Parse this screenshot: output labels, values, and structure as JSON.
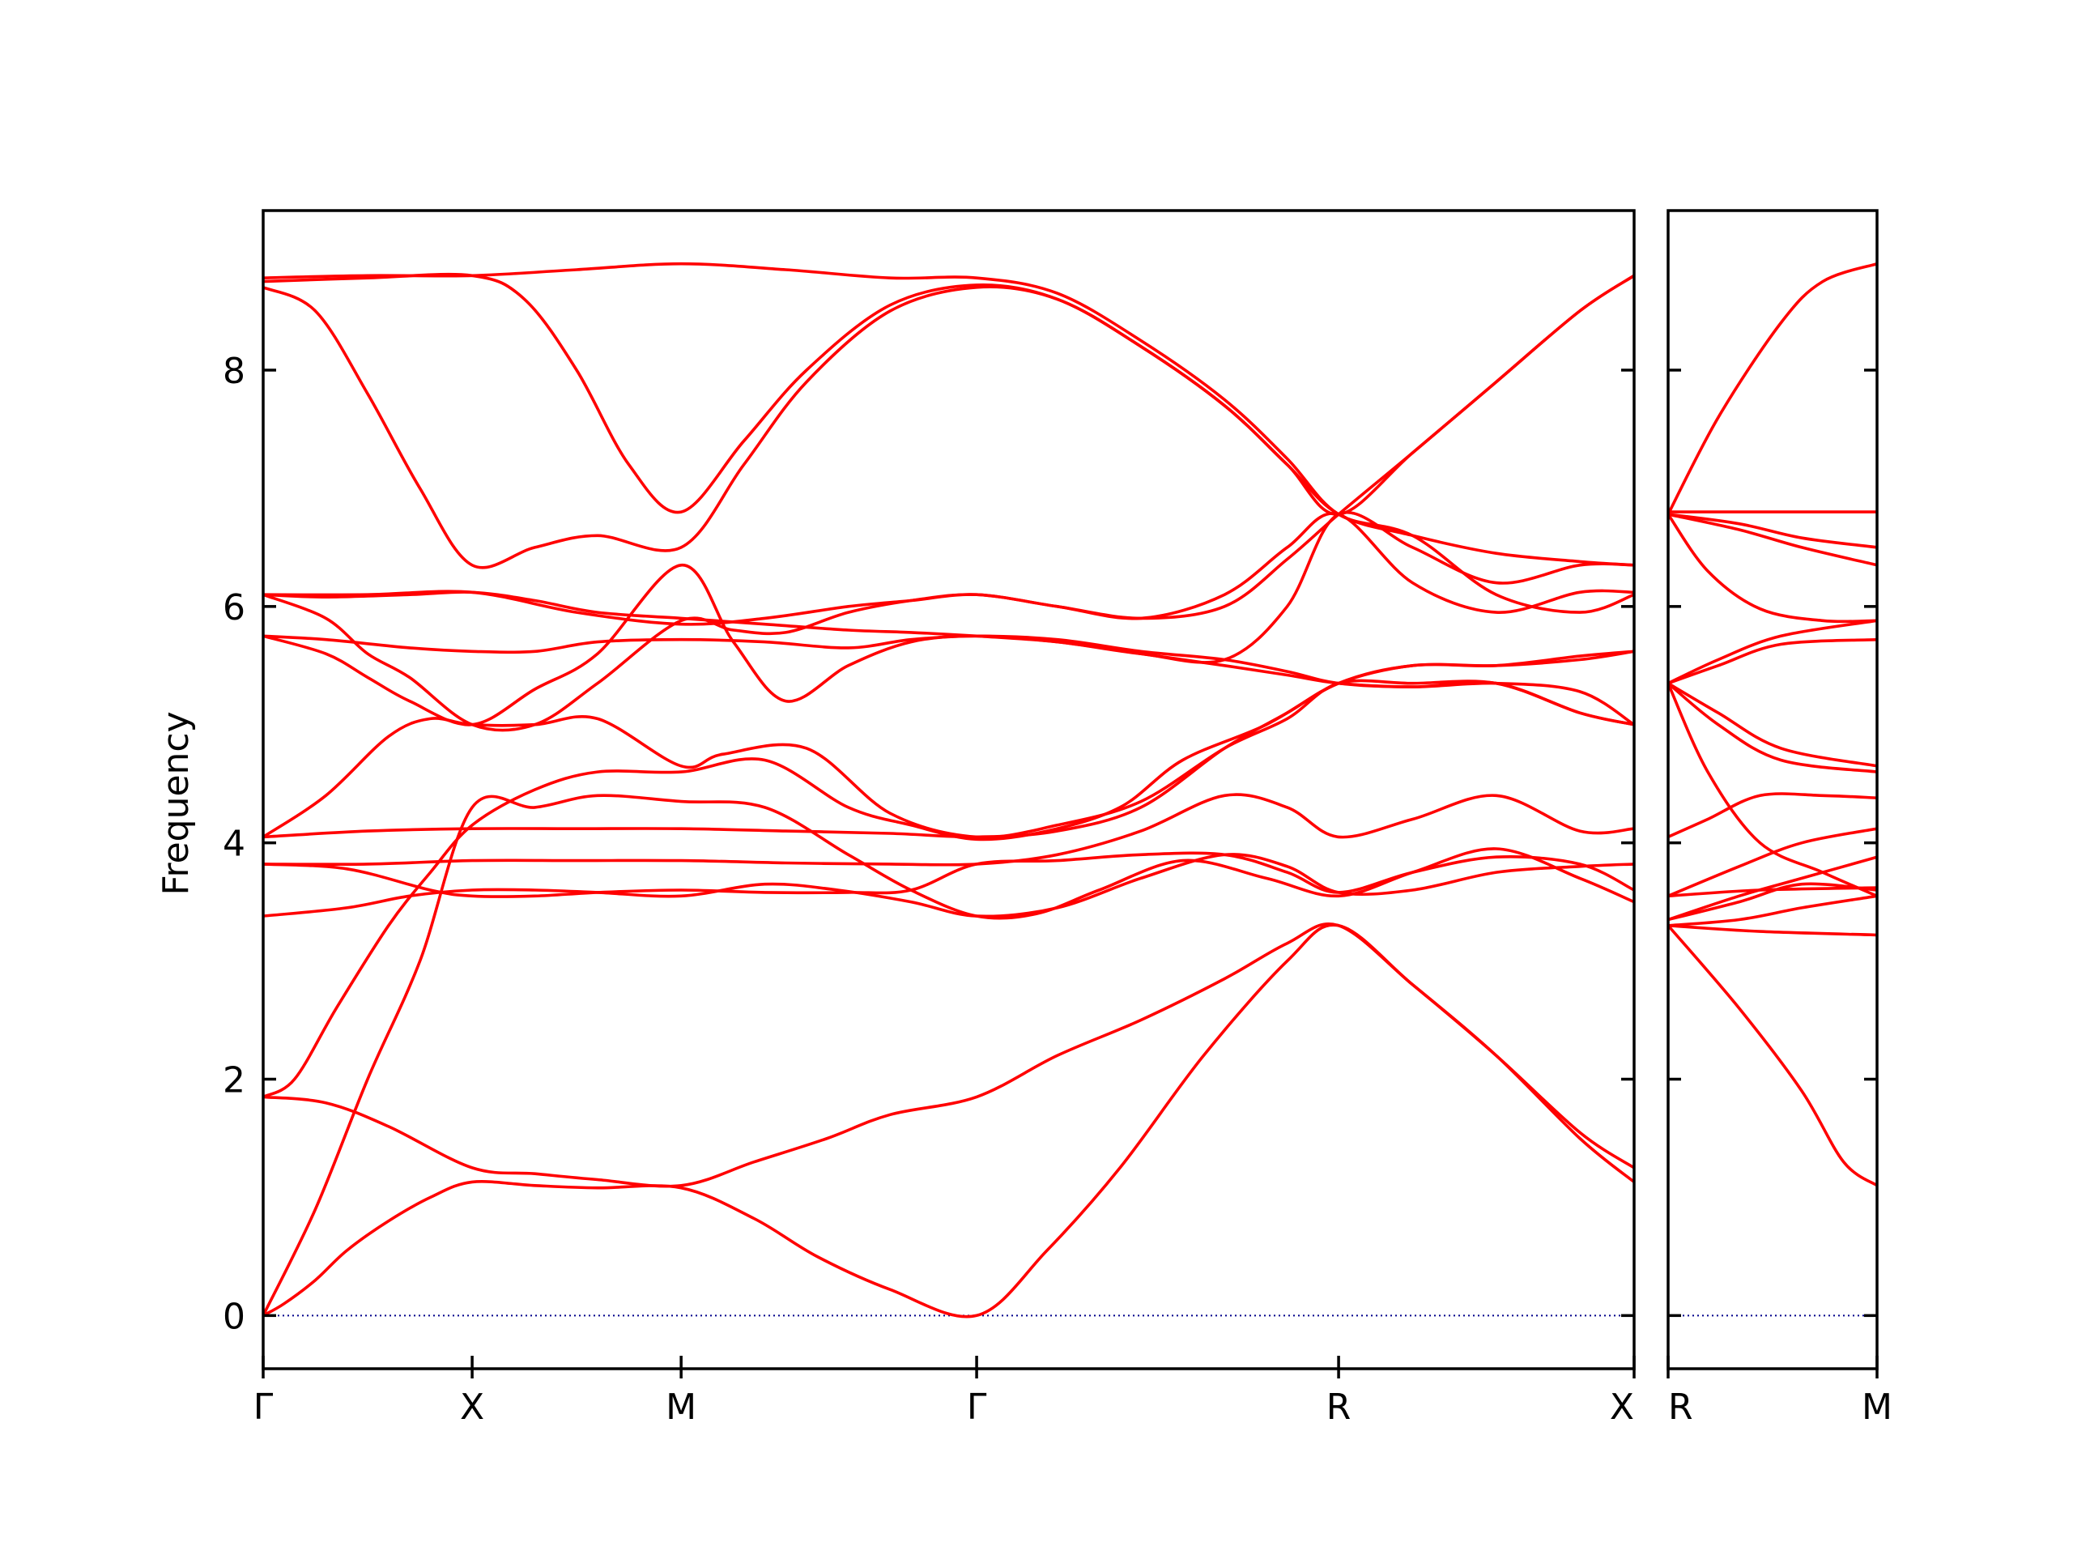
{
  "chart_data": {
    "type": "line",
    "title": "",
    "ylabel": "Frequency",
    "ylim": [
      -0.45,
      9.35
    ],
    "yticks": [
      0,
      2,
      4,
      6,
      8
    ],
    "colors": {
      "bands": "#ff0000",
      "zero_line": "#00008b"
    },
    "segments": [
      {
        "labels": [
          "Γ",
          "X"
        ],
        "length": 1.0
      },
      {
        "labels": [
          "X",
          "M"
        ],
        "length": 1.0
      },
      {
        "labels": [
          "M",
          "Γ"
        ],
        "length": 1.414
      },
      {
        "labels": [
          "Γ",
          "R"
        ],
        "length": 1.732
      },
      {
        "labels": [
          "R",
          "X"
        ],
        "length": 1.414
      },
      {
        "labels": [
          "R",
          "M"
        ],
        "length": 1.0
      }
    ],
    "panels": [
      {
        "segments": [
          0,
          1,
          2,
          3,
          4
        ],
        "tick_labels": [
          "Γ",
          "X",
          "M",
          "Γ",
          "R",
          "X"
        ]
      },
      {
        "segments": [
          5
        ],
        "tick_labels": [
          "R",
          "M"
        ]
      }
    ],
    "series": [
      {
        "x": [
          0,
          0.1,
          0.25,
          0.4,
          0.6,
          0.8,
          1.0,
          1.3,
          1.6,
          2.0,
          2.35,
          2.65,
          3.0,
          3.414,
          3.75,
          4.1,
          4.5,
          4.9,
          5.146,
          5.5,
          5.9,
          6.3,
          6.56
        ],
        "y": [
          0.0,
          0.1,
          0.3,
          0.55,
          0.8,
          1.0,
          1.13,
          1.1,
          1.08,
          1.08,
          0.82,
          0.5,
          0.22,
          0.0,
          0.55,
          1.25,
          2.2,
          3.0,
          3.3,
          2.8,
          2.2,
          1.5,
          1.13
        ]
      },
      {
        "x": [
          0,
          0.3,
          0.6,
          1.0,
          1.3,
          1.6,
          2.0,
          2.35,
          2.7,
          3.0,
          3.414,
          3.8,
          4.2,
          4.6,
          4.9,
          5.146,
          5.5,
          5.9,
          6.3,
          6.56
        ],
        "y": [
          1.85,
          1.8,
          1.6,
          1.25,
          1.2,
          1.15,
          1.1,
          1.3,
          1.5,
          1.7,
          1.85,
          2.2,
          2.5,
          2.85,
          3.15,
          3.3,
          2.8,
          2.2,
          1.55,
          1.25
        ]
      },
      {
        "x": [
          0,
          0.25,
          0.5,
          0.75,
          1.0,
          1.3,
          1.6,
          2.0,
          2.4,
          2.8,
          3.1,
          3.414,
          3.7,
          4.0,
          4.4,
          4.8,
          5.146,
          5.5,
          5.9,
          6.3,
          6.56
        ],
        "y": [
          0.0,
          0.9,
          2.0,
          3.0,
          4.3,
          4.3,
          4.4,
          4.35,
          4.3,
          3.9,
          3.6,
          3.38,
          3.4,
          3.6,
          3.85,
          3.7,
          3.55,
          3.75,
          3.95,
          3.7,
          3.5
        ]
      },
      {
        "x": [
          0,
          0.15,
          0.35,
          0.6,
          0.8,
          1.0,
          1.3,
          1.6,
          2.0,
          2.4,
          2.8,
          3.1,
          3.414,
          3.75,
          4.1,
          4.4,
          4.8,
          5.146,
          5.5,
          5.9,
          6.3,
          6.56
        ],
        "y": [
          1.85,
          2.0,
          2.6,
          3.3,
          3.75,
          4.15,
          4.45,
          4.6,
          4.6,
          4.7,
          4.3,
          4.15,
          4.03,
          4.1,
          4.3,
          4.7,
          5.0,
          5.35,
          5.5,
          5.5,
          5.55,
          5.62
        ]
      },
      {
        "x": [
          0,
          0.3,
          0.6,
          0.8,
          1.0,
          1.3,
          1.6,
          2.0,
          2.2,
          2.6,
          3.0,
          3.414,
          3.8,
          4.2,
          4.6,
          4.9,
          5.146,
          5.5,
          5.9,
          6.3,
          6.56
        ],
        "y": [
          4.05,
          4.4,
          4.9,
          5.05,
          5.0,
          5.0,
          5.05,
          4.65,
          4.75,
          4.8,
          4.25,
          4.05,
          4.15,
          4.35,
          4.8,
          5.05,
          5.35,
          5.35,
          5.35,
          5.1,
          5.0
        ]
      },
      {
        "x": [
          0,
          0.4,
          0.7,
          1.0,
          1.3,
          1.6,
          2.0,
          2.4,
          2.75,
          3.1,
          3.414,
          3.8,
          4.2,
          4.6,
          4.9,
          5.146,
          5.5,
          5.9,
          6.3,
          6.56
        ],
        "y": [
          3.38,
          3.45,
          3.55,
          3.6,
          3.6,
          3.58,
          3.55,
          3.65,
          3.6,
          3.5,
          3.38,
          3.45,
          3.7,
          3.9,
          3.8,
          3.58,
          3.6,
          3.75,
          3.8,
          3.82
        ]
      },
      {
        "x": [
          0,
          0.4,
          0.8,
          1.0,
          1.3,
          1.6,
          2.0,
          2.4,
          2.8,
          3.1,
          3.414,
          3.8,
          4.2,
          4.6,
          4.9,
          5.146,
          5.5,
          5.9,
          6.3,
          6.56
        ],
        "y": [
          3.82,
          3.78,
          3.6,
          3.55,
          3.55,
          3.58,
          3.6,
          3.58,
          3.58,
          3.6,
          3.82,
          3.85,
          3.9,
          3.9,
          3.75,
          3.58,
          3.75,
          3.88,
          3.82,
          3.6
        ]
      },
      {
        "x": [
          0,
          0.5,
          1.0,
          1.5,
          2.0,
          2.5,
          3.0,
          3.414,
          3.8,
          4.2,
          4.6,
          4.9,
          5.146,
          5.5,
          5.9,
          6.3,
          6.56
        ],
        "y": [
          3.82,
          3.82,
          3.85,
          3.85,
          3.85,
          3.83,
          3.82,
          3.82,
          3.9,
          4.1,
          4.4,
          4.3,
          4.05,
          4.2,
          4.4,
          4.1,
          4.12
        ]
      },
      {
        "x": [
          0,
          0.5,
          1.0,
          1.5,
          2.0,
          2.5,
          3.0,
          3.414,
          3.8,
          4.2,
          4.6,
          4.9,
          5.146,
          5.5,
          5.9,
          6.3,
          6.56
        ],
        "y": [
          4.05,
          4.1,
          4.12,
          4.12,
          4.12,
          4.1,
          4.08,
          4.05,
          4.1,
          4.3,
          4.8,
          5.1,
          5.35,
          5.5,
          5.5,
          5.58,
          5.62
        ]
      },
      {
        "x": [
          0,
          0.3,
          0.7,
          1.0,
          1.3,
          1.6,
          2.0,
          2.4,
          2.8,
          3.1,
          3.414,
          3.8,
          4.2,
          4.6,
          4.9,
          5.146,
          5.5,
          5.9,
          6.3,
          6.56
        ],
        "y": [
          6.1,
          6.08,
          6.1,
          6.12,
          6.05,
          5.95,
          5.9,
          5.85,
          5.8,
          5.78,
          5.75,
          5.7,
          5.6,
          5.5,
          5.42,
          5.35,
          5.32,
          5.35,
          5.1,
          5.0
        ]
      },
      {
        "x": [
          0,
          0.3,
          0.7,
          1.0,
          1.3,
          1.6,
          2.0,
          2.4,
          2.8,
          3.1,
          3.414,
          3.8,
          4.2,
          4.6,
          4.9,
          5.146,
          5.5,
          5.9,
          6.3,
          6.56
        ],
        "y": [
          5.75,
          5.72,
          5.65,
          5.62,
          5.62,
          5.7,
          5.72,
          5.7,
          5.65,
          5.72,
          5.75,
          5.72,
          5.62,
          5.55,
          5.45,
          5.35,
          5.32,
          5.35,
          5.28,
          5.0
        ]
      },
      {
        "x": [
          0,
          0.3,
          0.5,
          0.7,
          1.0,
          1.3,
          1.6,
          2.0,
          2.25,
          2.5,
          2.8,
          3.1,
          3.414,
          3.8,
          4.2,
          4.6,
          4.9,
          5.146,
          5.5,
          5.9,
          6.3,
          6.56
        ],
        "y": [
          5.75,
          5.6,
          5.4,
          5.2,
          5.0,
          5.3,
          5.6,
          6.35,
          5.7,
          5.2,
          5.5,
          5.7,
          5.75,
          5.7,
          5.6,
          5.55,
          6.0,
          6.78,
          6.5,
          6.2,
          6.35,
          6.35
        ]
      },
      {
        "x": [
          0,
          0.3,
          0.5,
          0.7,
          1.0,
          1.3,
          1.6,
          2.0,
          2.25,
          2.5,
          2.8,
          3.1,
          3.414,
          3.8,
          4.2,
          4.6,
          4.9,
          5.146,
          5.5,
          5.9,
          6.3,
          6.56
        ],
        "y": [
          6.1,
          5.9,
          5.6,
          5.4,
          5.0,
          5.0,
          5.35,
          5.88,
          5.8,
          5.78,
          5.95,
          6.05,
          6.1,
          6.0,
          5.9,
          6.1,
          6.5,
          6.78,
          6.2,
          5.95,
          6.12,
          6.12
        ]
      },
      {
        "x": [
          0,
          0.5,
          1.0,
          1.5,
          2.0,
          2.4,
          2.8,
          3.1,
          3.414,
          3.8,
          4.2,
          4.6,
          4.9,
          5.146,
          5.5,
          5.9,
          6.3,
          6.56
        ],
        "y": [
          6.1,
          6.1,
          6.12,
          5.95,
          5.85,
          5.9,
          6.0,
          6.05,
          6.1,
          6.0,
          5.9,
          6.0,
          6.4,
          6.78,
          7.3,
          7.9,
          8.5,
          8.8
        ]
      },
      {
        "x": [
          0,
          0.25,
          0.5,
          0.75,
          1.0,
          1.3,
          1.6,
          2.0,
          2.3,
          2.6,
          3.0,
          3.414,
          3.8,
          4.2,
          4.6,
          4.9,
          5.146,
          5.5,
          5.9,
          6.3,
          6.56
        ],
        "y": [
          8.7,
          8.5,
          7.8,
          7.0,
          6.35,
          6.5,
          6.6,
          6.5,
          7.2,
          7.9,
          8.5,
          8.7,
          8.6,
          8.2,
          7.7,
          7.2,
          6.78,
          7.3,
          7.9,
          8.5,
          8.8
        ]
      },
      {
        "x": [
          0,
          0.5,
          1.0,
          1.25,
          1.5,
          1.75,
          2.0,
          2.3,
          2.6,
          3.0,
          3.414,
          3.8,
          4.2,
          4.6,
          4.9,
          5.146,
          5.5,
          5.9,
          6.3,
          6.56
        ],
        "y": [
          8.75,
          8.78,
          8.8,
          8.6,
          8.0,
          7.2,
          6.8,
          7.4,
          8.0,
          8.55,
          8.72,
          8.6,
          8.2,
          7.7,
          7.2,
          6.78,
          6.6,
          6.45,
          6.38,
          6.35
        ]
      },
      {
        "x": [
          0,
          0.5,
          1.0,
          1.5,
          2.0,
          2.5,
          3.0,
          3.414,
          3.8,
          4.2,
          4.6,
          4.9,
          5.146,
          5.5,
          5.9,
          6.3,
          6.56
        ],
        "y": [
          8.78,
          8.8,
          8.8,
          8.85,
          8.9,
          8.85,
          8.78,
          8.78,
          8.65,
          8.25,
          7.75,
          7.25,
          6.78,
          6.6,
          6.1,
          5.95,
          6.1
        ]
      },
      {
        "x": [
          6.56,
          6.9,
          7.2,
          7.4,
          7.56
        ],
        "y": [
          3.3,
          2.6,
          1.9,
          1.3,
          1.1
        ]
      },
      {
        "x": [
          6.56,
          7.0,
          7.56
        ],
        "y": [
          3.3,
          3.25,
          3.22
        ]
      },
      {
        "x": [
          6.56,
          6.9,
          7.2,
          7.56
        ],
        "y": [
          3.3,
          3.35,
          3.45,
          3.55
        ]
      },
      {
        "x": [
          6.56,
          6.9,
          7.2,
          7.56
        ],
        "y": [
          3.35,
          3.5,
          3.65,
          3.6
        ]
      },
      {
        "x": [
          6.56,
          7.0,
          7.56
        ],
        "y": [
          3.55,
          3.6,
          3.62
        ]
      },
      {
        "x": [
          6.56,
          6.9,
          7.2,
          7.56
        ],
        "y": [
          3.35,
          3.55,
          3.7,
          3.88
        ]
      },
      {
        "x": [
          6.56,
          6.9,
          7.2,
          7.56
        ],
        "y": [
          3.55,
          3.8,
          4.0,
          4.12
        ]
      },
      {
        "x": [
          6.56,
          6.75,
          7.0,
          7.3,
          7.56
        ],
        "y": [
          5.35,
          4.6,
          4.0,
          3.75,
          3.55
        ]
      },
      {
        "x": [
          6.56,
          6.75,
          7.0,
          7.3,
          7.56
        ],
        "y": [
          4.05,
          4.2,
          4.4,
          4.4,
          4.38
        ]
      },
      {
        "x": [
          6.56,
          6.8,
          7.1,
          7.56
        ],
        "y": [
          5.35,
          5.0,
          4.7,
          4.6
        ]
      },
      {
        "x": [
          6.56,
          6.8,
          7.1,
          7.56
        ],
        "y": [
          5.35,
          5.1,
          4.8,
          4.65
        ]
      },
      {
        "x": [
          6.56,
          6.8,
          7.1,
          7.56
        ],
        "y": [
          5.35,
          5.5,
          5.68,
          5.72
        ]
      },
      {
        "x": [
          6.56,
          6.8,
          7.1,
          7.56
        ],
        "y": [
          5.35,
          5.55,
          5.75,
          5.88
        ]
      },
      {
        "x": [
          6.56,
          6.75,
          7.0,
          7.3,
          7.56
        ],
        "y": [
          6.78,
          6.3,
          5.98,
          5.88,
          5.88
        ]
      },
      {
        "x": [
          6.56,
          6.9,
          7.2,
          7.56
        ],
        "y": [
          6.78,
          6.65,
          6.5,
          6.35
        ]
      },
      {
        "x": [
          6.56,
          6.9,
          7.2,
          7.56
        ],
        "y": [
          6.78,
          6.7,
          6.58,
          6.5
        ]
      },
      {
        "x": [
          6.56,
          7.0,
          7.56
        ],
        "y": [
          6.8,
          6.8,
          6.8
        ]
      },
      {
        "x": [
          6.56,
          6.8,
          7.1,
          7.3,
          7.56
        ],
        "y": [
          6.78,
          7.6,
          8.4,
          8.75,
          8.9
        ]
      }
    ]
  }
}
